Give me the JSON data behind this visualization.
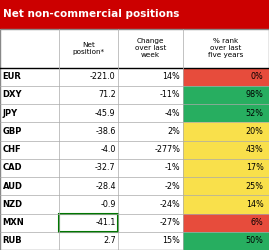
{
  "title": "Net non-commercial positions",
  "title_bg": "#cc0000",
  "title_fg": "#ffffff",
  "col_headers": [
    "Net\nposition*",
    "Change\nover last\nweek",
    "% rank\nover last\nfive years"
  ],
  "rows": [
    {
      "label": "EUR",
      "net": "-221.0",
      "change": "14%",
      "rank": "0%",
      "rank_color": "#e74c3c"
    },
    {
      "label": "DXY",
      "net": "71.2",
      "change": "-11%",
      "rank": "98%",
      "rank_color": "#27ae60"
    },
    {
      "label": "JPY",
      "net": "-45.9",
      "change": "-4%",
      "rank": "52%",
      "rank_color": "#27ae60"
    },
    {
      "label": "GBP",
      "net": "-38.6",
      "change": "2%",
      "rank": "20%",
      "rank_color": "#f9e04b"
    },
    {
      "label": "CHF",
      "net": "-4.0",
      "change": "-277%",
      "rank": "43%",
      "rank_color": "#f9e04b"
    },
    {
      "label": "CAD",
      "net": "-32.7",
      "change": "-1%",
      "rank": "17%",
      "rank_color": "#f9e04b"
    },
    {
      "label": "AUD",
      "net": "-28.4",
      "change": "-2%",
      "rank": "25%",
      "rank_color": "#f9e04b"
    },
    {
      "label": "NZD",
      "net": "-0.9",
      "change": "-24%",
      "rank": "14%",
      "rank_color": "#f9e04b"
    },
    {
      "label": "MXN",
      "net": "-41.1",
      "change": "-27%",
      "rank": "6%",
      "rank_color": "#e74c3c",
      "highlight": true
    },
    {
      "label": "RUB",
      "net": "2.7",
      "change": "15%",
      "rank": "50%",
      "rank_color": "#27ae60"
    }
  ],
  "outer_border_color": "#888888",
  "grid_color": "#aaaaaa",
  "bg_color": "#ffffff"
}
